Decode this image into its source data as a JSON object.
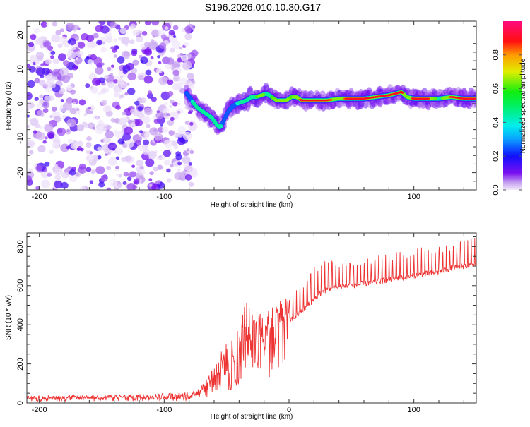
{
  "title": "S196.2026.010.10.30.G17",
  "chart_data": [
    {
      "type": "heatmap",
      "title": "S196.2026.010.10.30.G17",
      "xlabel": "Height of straight line (km)",
      "ylabel": "Frequency (Hz)",
      "xlim": [
        -210,
        150
      ],
      "ylim": [
        -25,
        24
      ],
      "xticks": [
        -200,
        -100,
        0,
        100
      ],
      "yticks": [
        -20,
        -10,
        0,
        10,
        20
      ],
      "colorbar": {
        "label": "Normalized spectral amplitude",
        "range": [
          0,
          1
        ],
        "ticks": [
          "0.0",
          "0.2",
          "0.4",
          "0.6",
          "0.8"
        ]
      },
      "noise_region_x": [
        -210,
        -80
      ],
      "ridge": {
        "x": [
          -82,
          -78,
          -74,
          -70,
          -66,
          -62,
          -58,
          -55,
          -50,
          -46,
          -42,
          -38,
          -34,
          -30,
          -26,
          -22,
          -18,
          -14,
          -10,
          -6,
          -2,
          2,
          6,
          10,
          20,
          30,
          40,
          50,
          60,
          70,
          80,
          86,
          90,
          94,
          100,
          110,
          120,
          130,
          140,
          150
        ],
        "freq": [
          3,
          1,
          -1,
          -2,
          -3,
          -4,
          -6,
          -7,
          -3,
          -1,
          0,
          0.5,
          1,
          2,
          2,
          2.5,
          3,
          2,
          1,
          1,
          1,
          2,
          2,
          1,
          1,
          1,
          1.5,
          1.5,
          1.5,
          2,
          2.5,
          3,
          3.5,
          2,
          1.5,
          1.5,
          1.5,
          2,
          1.5,
          1.5
        ],
        "amplitude": [
          0.3,
          0.4,
          0.5,
          0.55,
          0.5,
          0.55,
          0.6,
          0.45,
          0.3,
          0.35,
          0.4,
          0.45,
          0.5,
          0.55,
          0.6,
          0.7,
          0.5,
          0.6,
          0.65,
          0.8,
          0.7,
          0.6,
          0.7,
          0.9,
          0.95,
          0.9,
          0.75,
          0.95,
          0.95,
          0.9,
          0.95,
          0.9,
          0.95,
          0.6,
          0.95,
          0.95,
          0.5,
          0.9,
          0.95,
          0.9
        ]
      }
    },
    {
      "type": "line",
      "xlabel": "Height of straight line (km)",
      "ylabel": "SNR (10 * v/v)",
      "xlim": [
        -210,
        150
      ],
      "ylim": [
        0,
        870
      ],
      "xticks": [
        -200,
        -100,
        0,
        100
      ],
      "yticks": [
        0,
        200,
        400,
        600,
        800
      ],
      "series": [
        {
          "name": "SNR",
          "color": "#ee3333",
          "x": [
            -210,
            -180,
            -150,
            -120,
            -100,
            -90,
            -80,
            -75,
            -70,
            -65,
            -60,
            -55,
            -50,
            -45,
            -40,
            -35,
            -30,
            -25,
            -20,
            -15,
            -10,
            -5,
            0,
            5,
            10,
            15,
            20,
            25,
            30,
            35,
            40,
            50,
            60,
            70,
            80,
            90,
            100,
            110,
            120,
            130,
            140,
            150
          ],
          "base": [
            20,
            22,
            22,
            24,
            25,
            25,
            28,
            40,
            60,
            80,
            100,
            120,
            140,
            160,
            180,
            200,
            220,
            240,
            280,
            330,
            370,
            400,
            420,
            440,
            470,
            500,
            530,
            560,
            580,
            590,
            595,
            600,
            610,
            620,
            630,
            640,
            650,
            660,
            670,
            690,
            700,
            710
          ],
          "peak": [
            35,
            40,
            40,
            45,
            50,
            50,
            55,
            70,
            90,
            140,
            200,
            260,
            310,
            350,
            400,
            540,
            460,
            450,
            500,
            540,
            520,
            540,
            560,
            600,
            620,
            660,
            700,
            720,
            740,
            730,
            720,
            720,
            740,
            760,
            760,
            780,
            790,
            800,
            810,
            820,
            840,
            860
          ]
        }
      ]
    }
  ]
}
